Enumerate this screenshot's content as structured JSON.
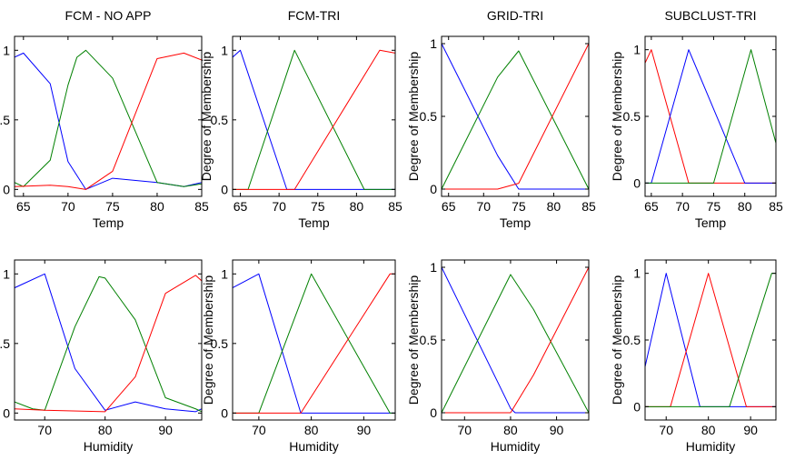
{
  "series_colors": {
    "blue": "#0000ff",
    "green": "#008000",
    "red": "#ff0000"
  },
  "chart_data": [
    {
      "type": "line",
      "title": "FCM - NO APP",
      "xlabel": "Temp",
      "ylabel": "Degree of Membership",
      "xlim": [
        64,
        85
      ],
      "ylim": [
        -0.05,
        1.1
      ],
      "xticks": [
        65,
        70,
        75,
        80,
        85
      ],
      "yticks": [
        0,
        0.5,
        1
      ],
      "ytick_labels": [
        "0",
        "0.5",
        "1"
      ],
      "series": [
        {
          "color": "blue",
          "x": [
            64,
            65,
            68,
            70,
            72,
            75,
            80,
            83,
            85
          ],
          "y": [
            0.95,
            0.98,
            0.76,
            0.2,
            0.0,
            0.08,
            0.05,
            0.02,
            0.05
          ]
        },
        {
          "color": "green",
          "x": [
            64,
            65,
            68,
            70,
            71,
            72,
            75,
            80,
            83,
            85
          ],
          "y": [
            0.05,
            0.02,
            0.21,
            0.75,
            0.95,
            1.0,
            0.8,
            0.05,
            0.02,
            0.04
          ]
        },
        {
          "color": "red",
          "x": [
            64,
            68,
            70,
            72,
            75,
            80,
            83,
            85
          ],
          "y": [
            0.02,
            0.03,
            0.02,
            0.0,
            0.13,
            0.94,
            0.98,
            0.93
          ]
        }
      ]
    },
    {
      "type": "line",
      "title": "FCM-TRI",
      "xlabel": "Temp",
      "ylabel": "Degree of Membership",
      "xlim": [
        64,
        85
      ],
      "ylim": [
        -0.05,
        1.1
      ],
      "xticks": [
        65,
        70,
        75,
        80,
        85
      ],
      "yticks": [
        0,
        0.5,
        1
      ],
      "ytick_labels": [
        "0",
        "0.5",
        "1"
      ],
      "series": [
        {
          "color": "blue",
          "x": [
            64,
            65,
            71,
            85
          ],
          "y": [
            0.95,
            1.0,
            0,
            0
          ]
        },
        {
          "color": "green",
          "x": [
            64,
            66,
            72,
            81,
            85
          ],
          "y": [
            0,
            0,
            1.0,
            0,
            0
          ]
        },
        {
          "color": "red",
          "x": [
            64,
            72,
            83,
            85
          ],
          "y": [
            0,
            0,
            1.0,
            0.98
          ]
        }
      ]
    },
    {
      "type": "line",
      "title": "GRID-TRI",
      "xlabel": "Temp",
      "ylabel": "Degree of Membership",
      "xlim": [
        64,
        85
      ],
      "ylim": [
        -0.05,
        1.05
      ],
      "xticks": [
        65,
        70,
        75,
        80,
        85
      ],
      "yticks": [
        0,
        0.5,
        1
      ],
      "ytick_labels": [
        "0",
        "0.5",
        "1"
      ],
      "series": [
        {
          "color": "blue",
          "x": [
            64,
            72,
            75,
            85
          ],
          "y": [
            1.0,
            0.23,
            0,
            0
          ]
        },
        {
          "color": "green",
          "x": [
            64,
            72,
            75,
            85
          ],
          "y": [
            0,
            0.77,
            0.95,
            0
          ]
        },
        {
          "color": "red",
          "x": [
            64,
            72,
            75,
            85
          ],
          "y": [
            0,
            0,
            0.04,
            1.0
          ]
        }
      ]
    },
    {
      "type": "line",
      "title": "SUBCLUST-TRI",
      "xlabel": "Temp",
      "ylabel": "Degree of Membership",
      "xlim": [
        64,
        85
      ],
      "ylim": [
        -0.1,
        1.1
      ],
      "xticks": [
        65,
        70,
        75,
        80,
        85
      ],
      "yticks": [
        0,
        0.5,
        1
      ],
      "ytick_labels": [
        "0",
        "0.5",
        "1"
      ],
      "series": [
        {
          "color": "red",
          "x": [
            64,
            65,
            71,
            85
          ],
          "y": [
            0.9,
            1.0,
            0,
            0
          ]
        },
        {
          "color": "blue",
          "x": [
            64,
            65,
            71,
            80,
            85
          ],
          "y": [
            0,
            0,
            1.0,
            0,
            0
          ]
        },
        {
          "color": "green",
          "x": [
            64,
            75,
            81,
            85
          ],
          "y": [
            0,
            0,
            1.0,
            0.3
          ]
        }
      ]
    },
    {
      "type": "line",
      "title": "",
      "xlabel": "Humidity",
      "ylabel": "Degree of Membership",
      "xlim": [
        65,
        96
      ],
      "ylim": [
        -0.05,
        1.1
      ],
      "xticks": [
        70,
        80,
        90
      ],
      "yticks": [
        0,
        0.5,
        1
      ],
      "ytick_labels": [
        "0",
        "0.5",
        "1"
      ],
      "series": [
        {
          "color": "blue",
          "x": [
            65,
            70,
            75,
            80,
            85,
            90,
            95,
            96
          ],
          "y": [
            0.9,
            1.0,
            0.32,
            0.02,
            0.08,
            0.03,
            0.01,
            0.03
          ]
        },
        {
          "color": "green",
          "x": [
            65,
            68,
            70,
            75,
            79,
            80,
            85,
            90,
            95,
            96
          ],
          "y": [
            0.08,
            0.03,
            0.02,
            0.62,
            0.98,
            0.97,
            0.67,
            0.11,
            0.03,
            0.01
          ]
        },
        {
          "color": "red",
          "x": [
            65,
            70,
            80,
            85,
            90,
            95,
            96
          ],
          "y": [
            0.03,
            0.02,
            0.01,
            0.26,
            0.86,
            0.99,
            0.95
          ]
        }
      ]
    },
    {
      "type": "line",
      "title": "",
      "xlabel": "Humidity",
      "ylabel": "Degree of Membership",
      "xlim": [
        65,
        96
      ],
      "ylim": [
        -0.05,
        1.1
      ],
      "xticks": [
        70,
        80,
        90
      ],
      "yticks": [
        0,
        0.5,
        1
      ],
      "ytick_labels": [
        "0",
        "0.5",
        "1"
      ],
      "series": [
        {
          "color": "blue",
          "x": [
            65,
            70,
            78,
            96
          ],
          "y": [
            0.9,
            1.0,
            0,
            0
          ]
        },
        {
          "color": "green",
          "x": [
            65,
            70,
            80,
            95,
            96
          ],
          "y": [
            0,
            0,
            1.0,
            0,
            0
          ]
        },
        {
          "color": "red",
          "x": [
            65,
            78,
            95,
            96
          ],
          "y": [
            0,
            0,
            1.0,
            1.0
          ]
        }
      ]
    },
    {
      "type": "line",
      "title": "",
      "xlabel": "Humidity",
      "ylabel": "Degree of Membership",
      "xlim": [
        65,
        97
      ],
      "ylim": [
        -0.05,
        1.05
      ],
      "xticks": [
        70,
        80,
        90
      ],
      "yticks": [
        0,
        0.5,
        1
      ],
      "ytick_labels": [
        "0",
        "0.5",
        "1"
      ],
      "series": [
        {
          "color": "blue",
          "x": [
            65,
            80,
            81,
            97
          ],
          "y": [
            1.0,
            0.03,
            0,
            0
          ]
        },
        {
          "color": "green",
          "x": [
            65,
            80,
            85,
            97
          ],
          "y": [
            0,
            0.95,
            0.71,
            0
          ]
        },
        {
          "color": "red",
          "x": [
            65,
            80,
            85,
            97
          ],
          "y": [
            0,
            0,
            0.26,
            1.0
          ]
        }
      ]
    },
    {
      "type": "line",
      "title": "",
      "xlabel": "Humidity",
      "ylabel": "Degree of Membership",
      "xlim": [
        65,
        96
      ],
      "ylim": [
        -0.1,
        1.1
      ],
      "xticks": [
        70,
        80,
        90
      ],
      "yticks": [
        0,
        0.5,
        1
      ],
      "ytick_labels": [
        "0",
        "0.5",
        "1"
      ],
      "series": [
        {
          "color": "blue",
          "x": [
            65,
            70,
            78,
            96
          ],
          "y": [
            0.3,
            1.0,
            0,
            0
          ]
        },
        {
          "color": "red",
          "x": [
            65,
            71,
            80,
            89,
            96
          ],
          "y": [
            0,
            0,
            1.0,
            0,
            0
          ]
        },
        {
          "color": "green",
          "x": [
            65,
            85,
            95,
            96
          ],
          "y": [
            0,
            0,
            1.0,
            1.0
          ]
        }
      ]
    }
  ]
}
